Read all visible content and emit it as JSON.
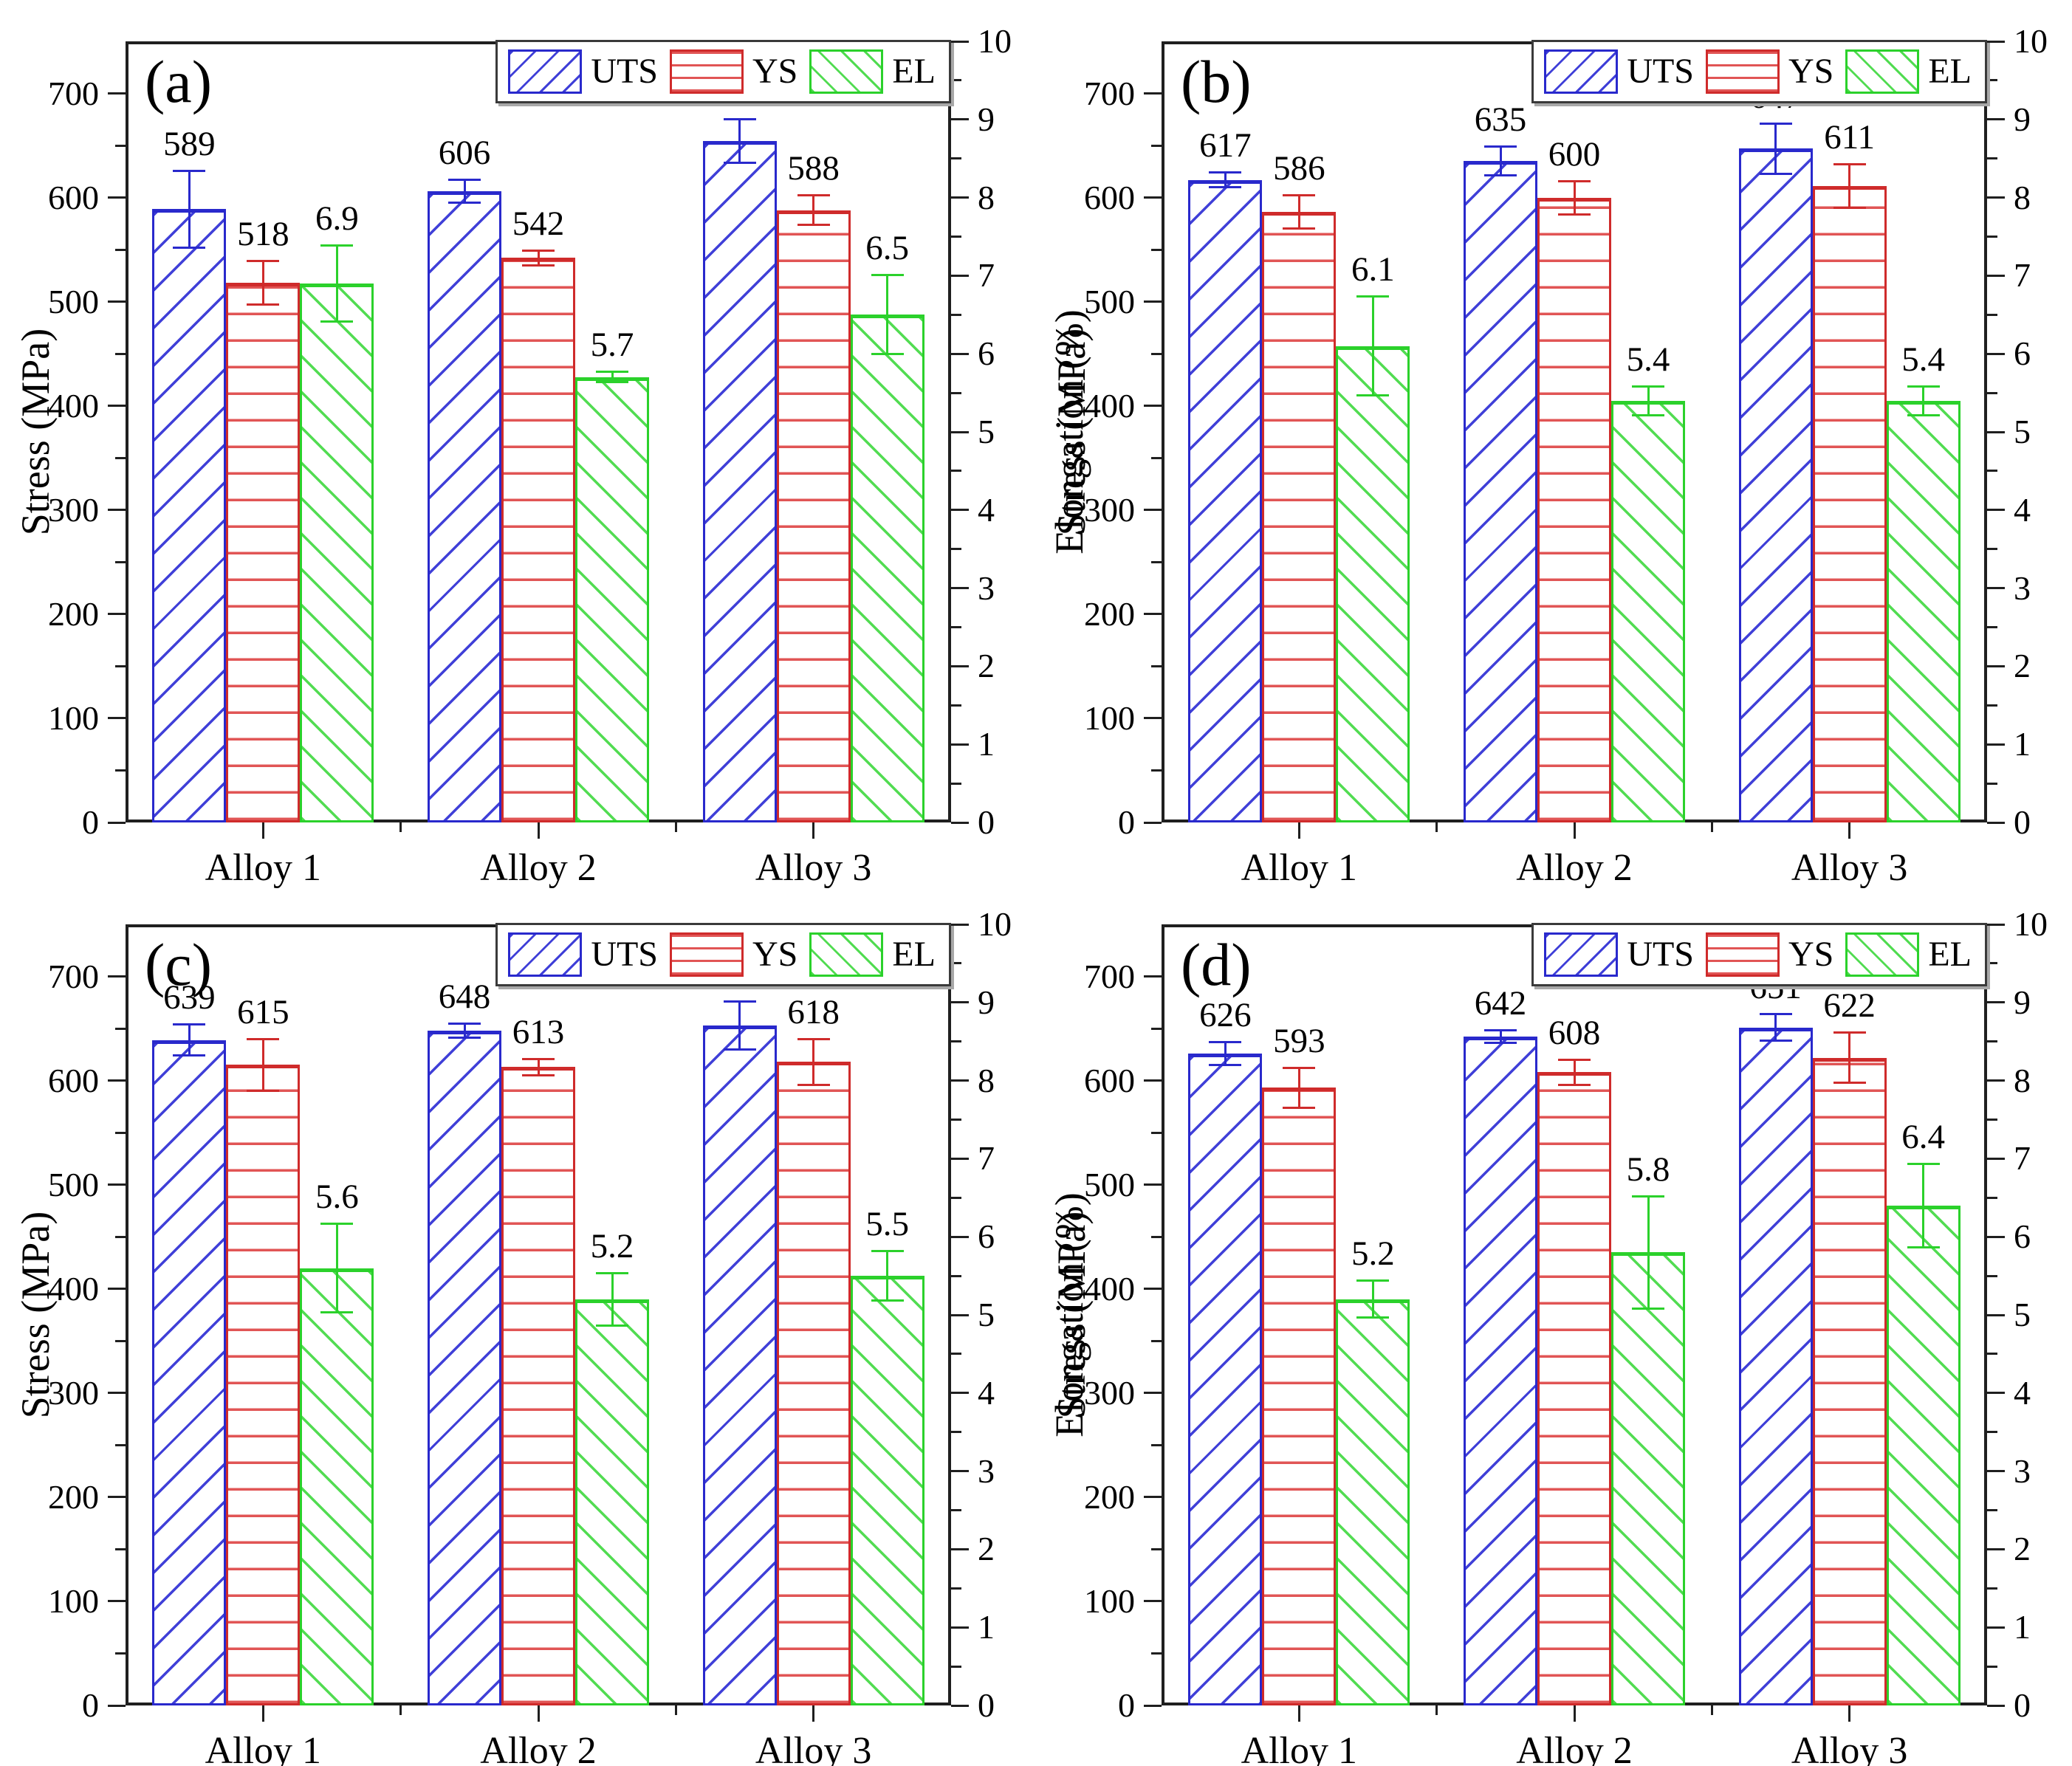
{
  "figure": {
    "background": "#ffffff",
    "axes": {
      "left_label": "Stress (MPa)",
      "right_label": "Elongation (%)",
      "left_ticks": [
        0,
        100,
        200,
        300,
        400,
        500,
        600,
        700
      ],
      "left_range": [
        0,
        750
      ],
      "left_minor_step": 50,
      "right_ticks": [
        0,
        1,
        2,
        3,
        4,
        5,
        6,
        7,
        8,
        9,
        10
      ],
      "right_range": [
        0,
        10
      ],
      "right_minor_step": 0.5
    },
    "categories": [
      "Alloy 1",
      "Alloy 2",
      "Alloy 3"
    ],
    "legend": {
      "items": [
        {
          "label": "UTS",
          "series": "UTS"
        },
        {
          "label": "YS",
          "series": "YS"
        },
        {
          "label": "EL",
          "series": "EL"
        }
      ]
    },
    "colors": {
      "UTS": "#2929cc",
      "YS": "#cf2b2b",
      "EL": "#2bd12b",
      "axis": "#1f1f1f",
      "text": "#000000"
    }
  },
  "chart_data": [
    {
      "type": "bar",
      "panel_label": "(a)",
      "categories": [
        "Alloy 1",
        "Alloy 2",
        "Alloy 3"
      ],
      "left_axis_label": "Stress (MPa)",
      "right_axis_label": "Elongation (%)",
      "left_ylim": [
        0,
        750
      ],
      "right_ylim": [
        0,
        10
      ],
      "legend_position": "top-right",
      "grid": false,
      "series": [
        {
          "name": "UTS",
          "axis": "left",
          "unit": "MPa",
          "hatch": "diagonal-forward",
          "values": [
            589,
            606,
            654
          ],
          "errors": [
            38,
            12,
            22
          ]
        },
        {
          "name": "YS",
          "axis": "left",
          "unit": "MPa",
          "hatch": "horizontal",
          "values": [
            518,
            542,
            588
          ],
          "errors": [
            22,
            8,
            15
          ]
        },
        {
          "name": "EL",
          "axis": "right",
          "unit": "%",
          "hatch": "diagonal-backward",
          "values": [
            6.9,
            5.7,
            6.5
          ],
          "errors": [
            0.5,
            0.08,
            0.52
          ]
        }
      ]
    },
    {
      "type": "bar",
      "panel_label": "(b)",
      "categories": [
        "Alloy 1",
        "Alloy 2",
        "Alloy 3"
      ],
      "left_axis_label": "Stress (MPa)",
      "right_axis_label": "Elongation (%)",
      "left_ylim": [
        0,
        750
      ],
      "right_ylim": [
        0,
        10
      ],
      "legend_position": "top-right",
      "grid": false,
      "series": [
        {
          "name": "UTS",
          "axis": "left",
          "unit": "MPa",
          "hatch": "diagonal-forward",
          "values": [
            617,
            635,
            647
          ],
          "errors": [
            8,
            15,
            25
          ]
        },
        {
          "name": "YS",
          "axis": "left",
          "unit": "MPa",
          "hatch": "horizontal",
          "values": [
            586,
            600,
            611
          ],
          "errors": [
            17,
            17,
            22
          ]
        },
        {
          "name": "EL",
          "axis": "right",
          "unit": "%",
          "hatch": "diagonal-backward",
          "values": [
            6.1,
            5.4,
            5.4
          ],
          "errors": [
            0.65,
            0.2,
            0.2
          ]
        }
      ]
    },
    {
      "type": "bar",
      "panel_label": "(c)",
      "categories": [
        "Alloy 1",
        "Alloy 2",
        "Alloy 3"
      ],
      "left_axis_label": "Stress (MPa)",
      "right_axis_label": "Elongation (%)",
      "left_ylim": [
        0,
        750
      ],
      "right_ylim": [
        0,
        10
      ],
      "legend_position": "top-right",
      "grid": false,
      "series": [
        {
          "name": "UTS",
          "axis": "left",
          "unit": "MPa",
          "hatch": "diagonal-forward",
          "values": [
            639,
            648,
            653
          ],
          "errors": [
            16,
            8,
            24
          ]
        },
        {
          "name": "YS",
          "axis": "left",
          "unit": "MPa",
          "hatch": "horizontal",
          "values": [
            615,
            613,
            618
          ],
          "errors": [
            26,
            9,
            23
          ]
        },
        {
          "name": "EL",
          "axis": "right",
          "unit": "%",
          "hatch": "diagonal-backward",
          "values": [
            5.6,
            5.2,
            5.5
          ],
          "errors": [
            0.58,
            0.35,
            0.33
          ]
        }
      ]
    },
    {
      "type": "bar",
      "panel_label": "(d)",
      "categories": [
        "Alloy 1",
        "Alloy 2",
        "Alloy 3"
      ],
      "left_axis_label": "Stress (MPa)",
      "right_axis_label": "Elongation (%)",
      "left_ylim": [
        0,
        750
      ],
      "right_ylim": [
        0,
        10
      ],
      "legend_position": "top-right",
      "grid": false,
      "series": [
        {
          "name": "UTS",
          "axis": "left",
          "unit": "MPa",
          "hatch": "diagonal-forward",
          "values": [
            626,
            642,
            651
          ],
          "errors": [
            12,
            7,
            14
          ]
        },
        {
          "name": "YS",
          "axis": "left",
          "unit": "MPa",
          "hatch": "horizontal",
          "values": [
            593,
            608,
            622
          ],
          "errors": [
            20,
            13,
            25
          ]
        },
        {
          "name": "EL",
          "axis": "right",
          "unit": "%",
          "hatch": "diagonal-backward",
          "values": [
            5.2,
            5.8,
            6.4
          ],
          "errors": [
            0.25,
            0.73,
            0.55
          ]
        }
      ]
    }
  ]
}
